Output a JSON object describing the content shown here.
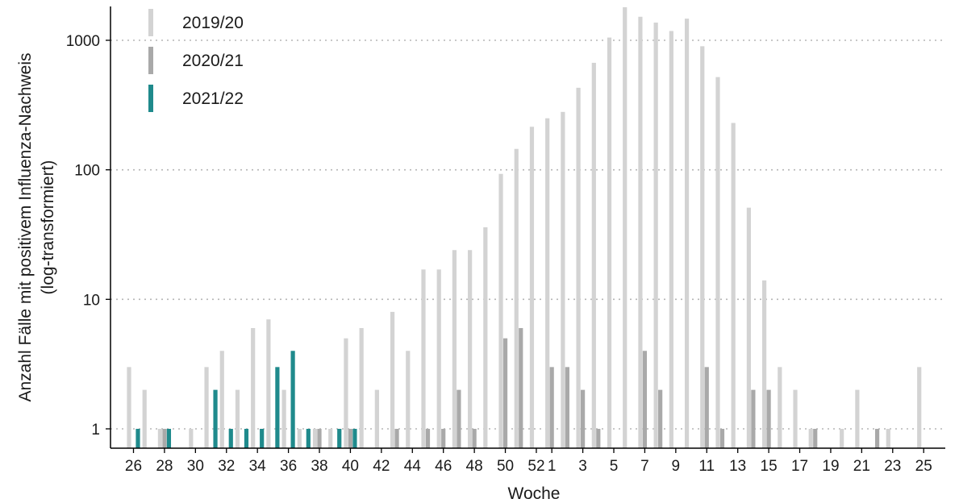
{
  "chart_data": {
    "type": "bar",
    "scale": "log",
    "xlabel": "Woche",
    "ylabel_line1": "Anzahl Fälle mit positivem Influenza-Nachweis",
    "ylabel_line2": "(log-transformiert)",
    "yticks": [
      1,
      10,
      100,
      1000
    ],
    "ytick_labels": [
      "1",
      "10",
      "100",
      "1000"
    ],
    "grid": "horizontal dotted",
    "legend_position": "top-left",
    "weeks": [
      26,
      27,
      28,
      29,
      30,
      31,
      32,
      33,
      34,
      35,
      36,
      37,
      38,
      39,
      40,
      41,
      42,
      43,
      44,
      45,
      46,
      47,
      48,
      49,
      50,
      51,
      52,
      1,
      2,
      3,
      4,
      5,
      6,
      7,
      8,
      9,
      10,
      11,
      12,
      13,
      14,
      15,
      16,
      17,
      18,
      19,
      20,
      21,
      22,
      23,
      24,
      25
    ],
    "xtick_labels": [
      "26",
      "28",
      "30",
      "32",
      "34",
      "36",
      "38",
      "40",
      "42",
      "44",
      "46",
      "48",
      "50",
      "52",
      "1",
      "3",
      "5",
      "7",
      "9",
      "11",
      "13",
      "15",
      "17",
      "19",
      "21",
      "23",
      "25"
    ],
    "series": [
      {
        "name": "2019/20",
        "color": "#d3d3d3",
        "values": [
          3,
          2,
          1,
          null,
          1,
          3,
          4,
          2,
          6,
          7,
          2,
          1,
          1,
          1,
          5,
          6,
          2,
          8,
          4,
          17,
          17,
          24,
          24,
          36,
          93,
          145,
          215,
          250,
          280,
          430,
          670,
          1050,
          1800,
          1520,
          1370,
          1180,
          1470,
          900,
          520,
          230,
          51,
          14,
          3,
          2,
          1,
          null,
          1,
          2,
          null,
          1,
          null,
          3
        ]
      },
      {
        "name": "2020/21",
        "color": "#a9a9a9",
        "values": [
          null,
          null,
          1,
          null,
          null,
          null,
          null,
          null,
          null,
          null,
          null,
          null,
          1,
          null,
          1,
          null,
          null,
          1,
          null,
          1,
          1,
          2,
          1,
          null,
          5,
          6,
          null,
          3,
          3,
          2,
          1,
          null,
          null,
          4,
          2,
          null,
          null,
          3,
          1,
          null,
          2,
          2,
          null,
          null,
          1,
          null,
          null,
          null,
          1,
          null,
          null,
          null
        ]
      },
      {
        "name": "2021/22",
        "color": "#1f8a8c",
        "values": [
          1,
          null,
          1,
          null,
          null,
          2,
          1,
          1,
          1,
          3,
          4,
          1,
          null,
          1,
          1,
          null,
          null,
          null,
          null,
          null,
          null,
          null,
          null,
          null,
          null,
          null,
          null,
          null,
          null,
          null,
          null,
          null,
          null,
          null,
          null,
          null,
          null,
          null,
          null,
          null,
          null,
          null,
          null,
          null,
          null,
          null,
          null,
          null,
          null,
          null,
          null,
          null
        ]
      }
    ]
  }
}
